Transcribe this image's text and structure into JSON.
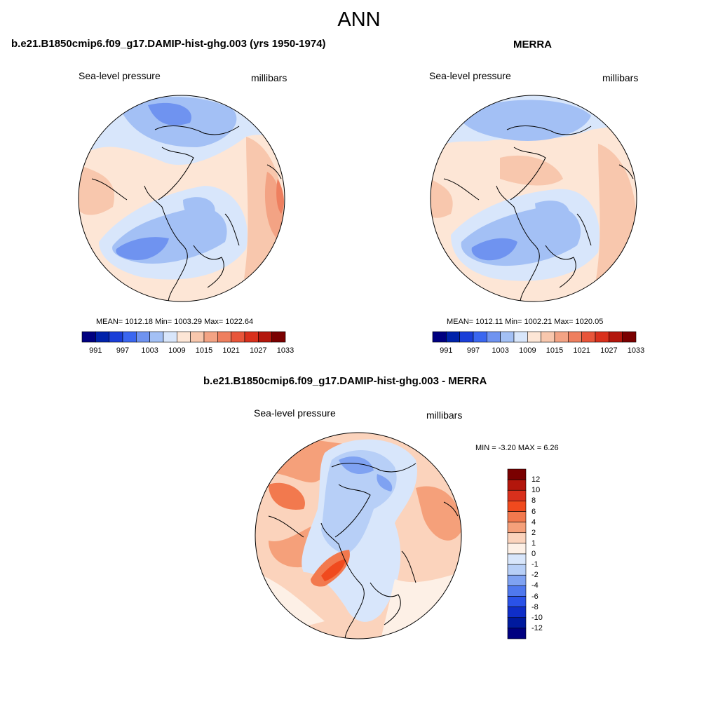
{
  "title": "ANN",
  "panels": [
    {
      "title": "b.e21.B1850cmip6.f09_g17.DAMIP-hist-ghg.003 (yrs 1950-1974)",
      "left_label": "Sea-level pressure",
      "right_label": "millibars",
      "stats": "MEAN= 1012.18  Min= 1003.29  Max= 1022.64",
      "colorbar_labels": [
        "991",
        "997",
        "1003",
        "1009",
        "1015",
        "1021",
        "1027",
        "1033"
      ]
    },
    {
      "title": "MERRA",
      "left_label": "Sea-level pressure",
      "right_label": "millibars",
      "stats": "MEAN= 1012.11  Min= 1002.21  Max= 1020.05",
      "colorbar_labels": [
        "991",
        "997",
        "1003",
        "1009",
        "1015",
        "1021",
        "1027",
        "1033"
      ]
    },
    {
      "title": "b.e21.B1850cmip6.f09_g17.DAMIP-hist-ghg.003 - MERRA",
      "left_label": "Sea-level pressure",
      "right_label": "millibars",
      "stats": "MIN =  -3.20 MAX =   6.26",
      "colorbar_labels": [
        "12",
        "10",
        "8",
        "6",
        "4",
        "2",
        "1",
        "0",
        "-1",
        "-2",
        "-4",
        "-6",
        "-8",
        "-10",
        "-12"
      ]
    }
  ],
  "colors": {
    "abs_scale": [
      "#000080",
      "#0022aa",
      "#1a3ed8",
      "#3a66f0",
      "#6f93f0",
      "#a3c0f5",
      "#d8e6fb",
      "#fde6d6",
      "#f8c7ad",
      "#f3a384",
      "#ee7f5f",
      "#e8553a",
      "#d9301c",
      "#b3160c",
      "#7a0000"
    ],
    "diff_scale": [
      "#7a0000",
      "#b3160c",
      "#d9301c",
      "#f04a1e",
      "#f2794e",
      "#f5a07a",
      "#fbd3bc",
      "#fdf0e6",
      "#d8e6fb",
      "#b7cff7",
      "#7fa2f2",
      "#4f78ee",
      "#2a52e8",
      "#0f2ec8",
      "#001a9e",
      "#000080"
    ]
  }
}
